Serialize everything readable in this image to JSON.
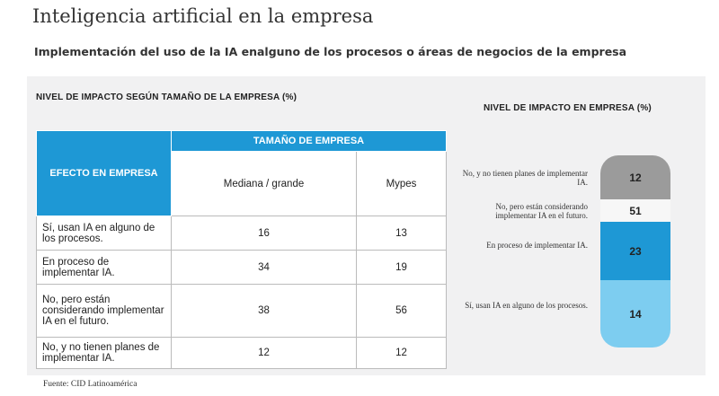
{
  "header": {
    "title": "Inteligencia artificial en la empresa",
    "subtitle": "Implementación del uso de la IA enalguno de los procesos o áreas de negocios de la empresa"
  },
  "table": {
    "heading": "NIVEL DE IMPACTO SEGÚN TAMAÑO DE LA EMPRESA (%)",
    "effect_header": "EFECTO EN EMPRESA",
    "group_header": "TAMAÑO DE EMPRESA",
    "columns": [
      "Mediana / grande",
      "Mypes"
    ],
    "rows": [
      [
        "Sí, usan  IA en alguno de los procesos.",
        16,
        13
      ],
      [
        "En proceso de implementar IA.",
        34,
        19
      ],
      [
        "No, pero están considerando implementar IA en el futuro.",
        38,
        56
      ],
      [
        "No, y no tienen  planes de implementar IA.",
        12,
        12
      ]
    ]
  },
  "impact": {
    "heading": "NIVEL DE IMPACTO EN EMPRESA (%)",
    "items": [
      {
        "label": "No, y no tienen planes de implementar IA.",
        "value": 12
      },
      {
        "label": "No, pero están considerando implementar IA en el futuro.",
        "value": 51
      },
      {
        "label": "En proceso de implementar IA.",
        "value": 23
      },
      {
        "label": "Sí, usan  IA en alguno de los procesos.",
        "value": 14
      }
    ]
  },
  "footer": {
    "source": "Fuente: CID Latinoamérica"
  }
}
